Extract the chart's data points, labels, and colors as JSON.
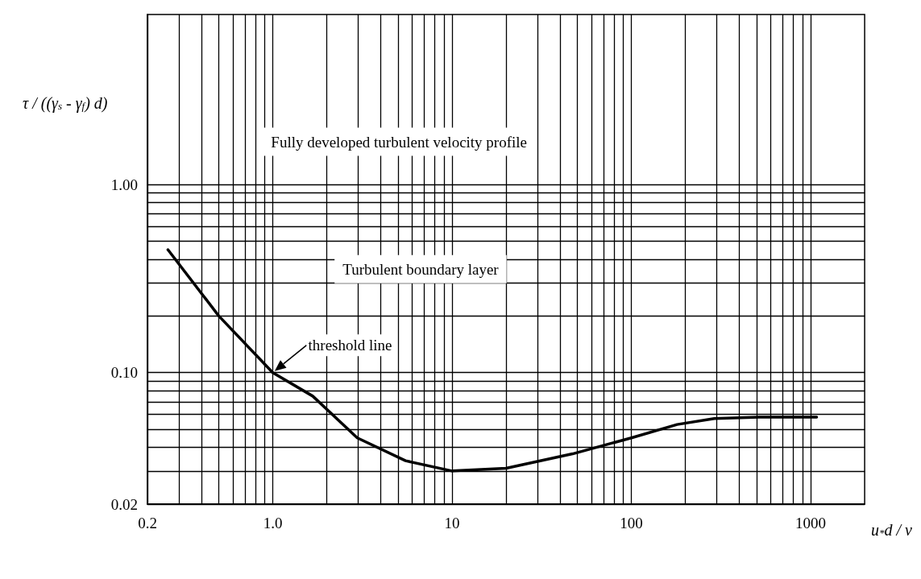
{
  "chart_data": {
    "type": "line",
    "xlabel": "u$_{*}$d / ν",
    "ylabel": "τ / ((γ$_{s}$ - γ$_{f}$) d)",
    "log": "xy",
    "grid": true,
    "marker": "none",
    "line_style": "solid",
    "xlim": [
      0.2,
      2000
    ],
    "ylim": [
      0.02,
      8
    ],
    "xticks": [
      0.2,
      {
        "value": 0.3,
        "label": null
      },
      {
        "value": 0.4,
        "label": null
      },
      {
        "value": 0.5,
        "label": null
      },
      {
        "value": 0.6,
        "label": null
      },
      {
        "value": 0.7,
        "label": null
      },
      {
        "value": 0.8,
        "label": null
      },
      {
        "value": 0.9,
        "label": null
      },
      {
        "value": 1,
        "label": "1.0"
      },
      {
        "value": 2,
        "label": null
      },
      {
        "value": 3,
        "label": null
      },
      {
        "value": 4,
        "label": null
      },
      {
        "value": 5,
        "label": null
      },
      {
        "value": 6,
        "label": null
      },
      {
        "value": 7,
        "label": null
      },
      {
        "value": 8,
        "label": null
      },
      {
        "value": 9,
        "label": null
      },
      10,
      {
        "value": 20,
        "label": null
      },
      {
        "value": 30,
        "label": null
      },
      {
        "value": 40,
        "label": null
      },
      {
        "value": 50,
        "label": null
      },
      {
        "value": 60,
        "label": null
      },
      {
        "value": 70,
        "label": null
      },
      {
        "value": 80,
        "label": null
      },
      {
        "value": 90,
        "label": null
      },
      100,
      {
        "value": 200,
        "label": null
      },
      {
        "value": 300,
        "label": null
      },
      {
        "value": 400,
        "label": null
      },
      {
        "value": 500,
        "label": null
      },
      {
        "value": 600,
        "label": null
      },
      {
        "value": 700,
        "label": null
      },
      {
        "value": 800,
        "label": null
      },
      {
        "value": 900,
        "label": null
      },
      1000
    ],
    "yticks": [
      0.02,
      {
        "value": 0.03,
        "label": null
      },
      {
        "value": 0.04,
        "label": null
      },
      {
        "value": 0.05,
        "label": null
      },
      {
        "value": 0.06,
        "label": null
      },
      {
        "value": 0.07,
        "label": null
      },
      {
        "value": 0.08,
        "label": null
      },
      {
        "value": 0.09,
        "label": null
      },
      {
        "value": 0.1,
        "label": "0.10"
      },
      {
        "value": 0.2,
        "label": null
      },
      {
        "value": 0.3,
        "label": null
      },
      {
        "value": 0.4,
        "label": null
      },
      {
        "value": 0.5,
        "label": null
      },
      {
        "value": 0.6,
        "label": null
      },
      {
        "value": 0.7,
        "label": null
      },
      {
        "value": 0.8,
        "label": null
      },
      {
        "value": 0.9,
        "label": null
      },
      {
        "value": 1,
        "label": "1.00"
      }
    ],
    "series": [
      {
        "color": "#000000",
        "x": [
          0.26,
          0.5,
          1.0,
          1.67,
          2.96,
          5.5,
          10,
          20,
          47,
          100,
          180,
          290,
          515,
          1080
        ],
        "values": [
          0.45,
          0.2,
          0.1,
          0.075,
          0.045,
          0.034,
          0.03,
          0.031,
          0.037,
          0.045,
          0.053,
          0.057,
          0.058,
          0.058
        ]
      }
    ],
    "annotations": [
      "Fully developed turbulent velocity profile",
      "Turbulent boundary layer",
      {
        "text": "threshold line",
        "x": 1,
        "y": 0.1
      }
    ]
  }
}
